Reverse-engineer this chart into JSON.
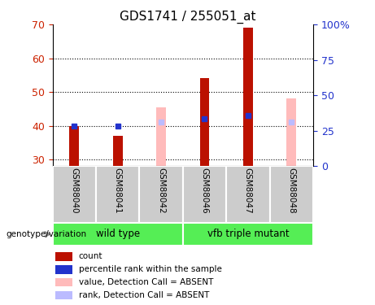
{
  "title": "GDS1741 / 255051_at",
  "samples": [
    "GSM88040",
    "GSM88041",
    "GSM88042",
    "GSM88046",
    "GSM88047",
    "GSM88048"
  ],
  "ylim_left": [
    28,
    70
  ],
  "ylim_right": [
    0,
    100
  ],
  "yticks_left": [
    30,
    40,
    50,
    60,
    70
  ],
  "yticks_right": [
    0,
    25,
    50,
    75,
    100
  ],
  "ytick_labels_right": [
    "0",
    "25",
    "50",
    "75",
    "100%"
  ],
  "count_color": "#bb1100",
  "rank_color": "#2233cc",
  "absent_value_color": "#ffbbbb",
  "absent_rank_color": "#bbbbff",
  "count_values": [
    40,
    37,
    null,
    54,
    69,
    null
  ],
  "rank_values": [
    40,
    40,
    null,
    42,
    43,
    null
  ],
  "absent_value_values": [
    null,
    null,
    45.5,
    null,
    null,
    48
  ],
  "absent_rank_values": [
    null,
    null,
    41,
    null,
    null,
    41
  ],
  "legend_items": [
    {
      "color": "#bb1100",
      "label": "count"
    },
    {
      "color": "#2233cc",
      "label": "percentile rank within the sample"
    },
    {
      "color": "#ffbbbb",
      "label": "value, Detection Call = ABSENT"
    },
    {
      "color": "#bbbbff",
      "label": "rank, Detection Call = ABSENT"
    }
  ],
  "ylabel_left_color": "#cc2200",
  "ylabel_right_color": "#2233cc",
  "bar_base": 28,
  "group_color": "#55ee55",
  "sample_box_color": "#cccccc",
  "wild_type_label": "wild type",
  "mutant_label": "vfb triple mutant",
  "genotype_label": "genotype/variation"
}
